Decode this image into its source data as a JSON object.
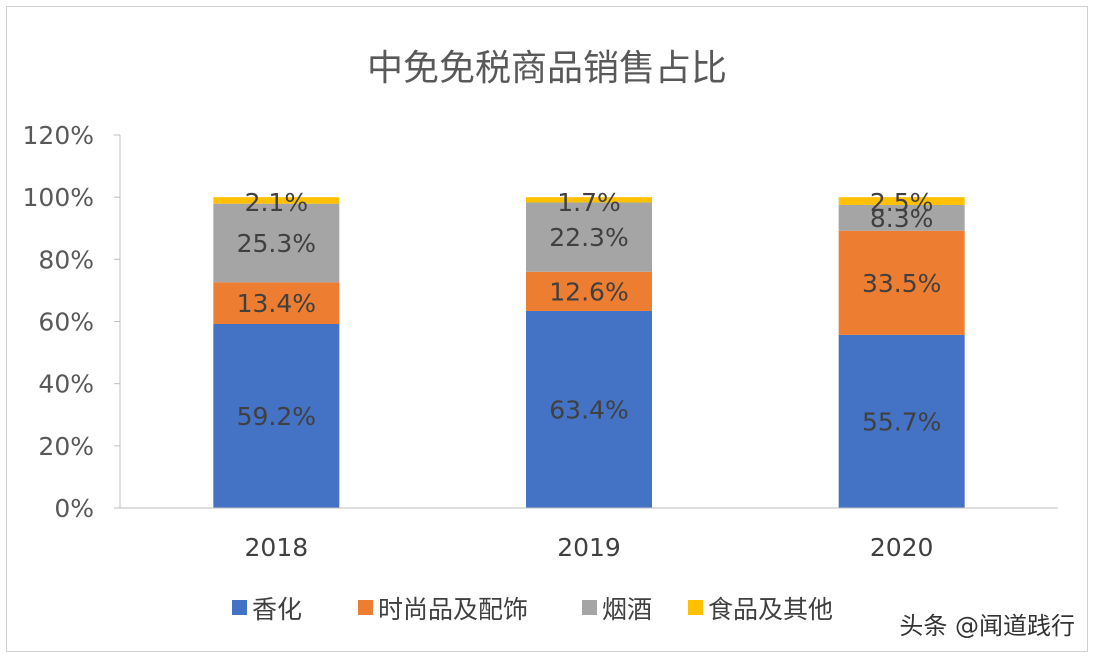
{
  "chart_data": {
    "type": "bar",
    "stacked": true,
    "title": "中免免税商品销售占比",
    "categories": [
      "2018",
      "2019",
      "2020"
    ],
    "series": [
      {
        "name": "香化",
        "color": "#4472C4",
        "values": [
          59.2,
          63.4,
          55.7
        ],
        "labels": [
          "59.2%",
          "63.4%",
          "55.7%"
        ]
      },
      {
        "name": "时尚品及配饰",
        "color": "#ED7D31",
        "values": [
          13.4,
          12.6,
          33.5
        ],
        "labels": [
          "13.4%",
          "12.6%",
          "33.5%"
        ]
      },
      {
        "name": "烟酒",
        "color": "#A5A5A5",
        "values": [
          25.3,
          22.3,
          8.3
        ],
        "labels": [
          "25.3%",
          "22.3%",
          "8.3%"
        ]
      },
      {
        "name": "食品及其他",
        "color": "#FFC000",
        "values": [
          2.1,
          1.7,
          2.5
        ],
        "labels": [
          "2.1%",
          "1.7%",
          "2.5%"
        ]
      }
    ],
    "ylim": [
      0,
      120
    ],
    "yticks": [
      "0%",
      "20%",
      "40%",
      "60%",
      "80%",
      "100%",
      "120%"
    ],
    "grid": false,
    "legend_position": "bottom"
  },
  "watermark": "头条 @闻道践行"
}
